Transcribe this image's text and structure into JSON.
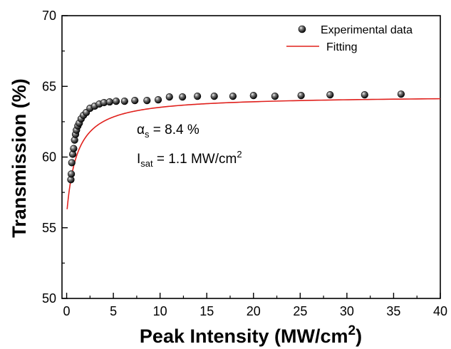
{
  "chart_data": {
    "type": "scatter",
    "title": "",
    "xlabel": "Peak Intensity (MW/cm",
    "xlabel_sup": "2",
    "xlabel_close": ")",
    "ylabel": "Transmission (%)",
    "xlim": [
      -0.5,
      40
    ],
    "ylim": [
      50,
      70
    ],
    "xticks": [
      0,
      5,
      10,
      15,
      20,
      25,
      30,
      35,
      40
    ],
    "yticks": [
      50,
      55,
      60,
      65,
      70
    ],
    "xtick_labels": [
      "0",
      "5",
      "10",
      "15",
      "20",
      "25",
      "30",
      "35",
      "40"
    ],
    "ytick_labels": [
      "50",
      "55",
      "60",
      "65",
      "70"
    ],
    "grid": false,
    "legend_position": "top-right",
    "series": [
      {
        "name": "Experimental data",
        "kind": "scatter",
        "color": "#111111",
        "x": [
          0.45,
          0.5,
          0.55,
          0.65,
          0.75,
          0.85,
          0.95,
          1.05,
          1.2,
          1.35,
          1.55,
          1.8,
          2.1,
          2.5,
          3.0,
          3.5,
          4.0,
          4.6,
          5.3,
          6.2,
          7.3,
          8.6,
          9.8,
          11.0,
          12.4,
          14.0,
          15.8,
          17.8,
          20.0,
          22.3,
          25.1,
          28.2,
          31.9,
          35.8
        ],
        "y": [
          58.4,
          58.8,
          59.6,
          60.2,
          60.6,
          61.2,
          61.6,
          61.9,
          62.2,
          62.4,
          62.7,
          62.95,
          63.15,
          63.45,
          63.6,
          63.75,
          63.85,
          63.9,
          63.95,
          63.95,
          64.0,
          64.0,
          64.05,
          64.25,
          64.25,
          64.3,
          64.3,
          64.3,
          64.35,
          64.3,
          64.35,
          64.4,
          64.4,
          64.45
        ]
      },
      {
        "name": "Fitting",
        "kind": "line",
        "color": "#e0201c",
        "alpha_s": 8.4,
        "I_sat": 1.1,
        "T_ns": 64.35,
        "x_range": [
          0.05,
          40
        ]
      }
    ],
    "annotations": [
      {
        "symbol": "α",
        "sub": "s",
        "text": " = 8.4 %"
      },
      {
        "symbol": "I",
        "sub": "sat",
        "text": " = 1.1 MW/cm",
        "sup": "2"
      }
    ]
  }
}
